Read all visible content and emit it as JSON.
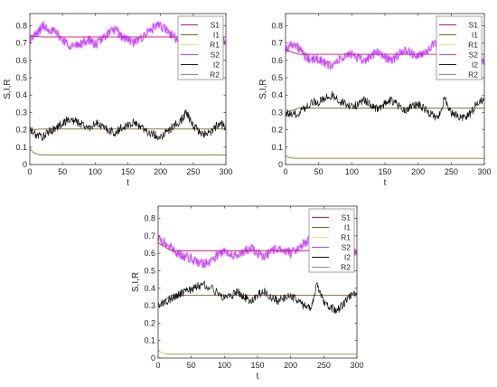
{
  "figure": {
    "colors": {
      "S1": "#c2186b",
      "I1": "#7a6a2a",
      "R1": "#dfe08a",
      "S2": "#c040ff",
      "I2": "#111111",
      "R2": "#8a8a8a",
      "axis": "#333333",
      "legend_border": "#666666"
    }
  },
  "chart_data": [
    {
      "type": "line",
      "panel": "top-left",
      "xlabel": "t",
      "ylabel": "S,I,R",
      "xlim": [
        0,
        300
      ],
      "ylim": [
        0,
        0.87
      ],
      "xticks": [
        0,
        50,
        100,
        150,
        200,
        250,
        300
      ],
      "yticks": [
        0,
        0.1,
        0.2,
        0.3,
        0.4,
        0.5,
        0.6,
        0.7,
        0.8
      ],
      "xtick_labels": [
        "0",
        "50",
        "100",
        "150",
        "200",
        "250",
        "300"
      ],
      "ytick_labels": [
        "0",
        "0.1",
        "0.2",
        "0.3",
        "0.4",
        "0.5",
        "0.6",
        "0.7",
        "0.8"
      ],
      "grid": false,
      "legend_position": "top-right",
      "legend": [
        "S1",
        "I1",
        "R1",
        "S2",
        "I2",
        "R2"
      ],
      "series": [
        {
          "name": "S1",
          "x": [
            0,
            20,
            300
          ],
          "values": [
            0.74,
            0.735,
            0.735
          ]
        },
        {
          "name": "I1",
          "x": [
            0,
            20,
            300
          ],
          "values": [
            0.2,
            0.205,
            0.205
          ]
        },
        {
          "name": "R1",
          "x": [
            0,
            5,
            15,
            300
          ],
          "values": [
            0.1,
            0.075,
            0.06,
            0.06
          ]
        },
        {
          "name": "S2",
          "x": [
            0,
            10,
            20,
            30,
            40,
            50,
            60,
            70,
            80,
            90,
            100,
            110,
            120,
            130,
            140,
            150,
            160,
            170,
            180,
            190,
            200,
            210,
            220,
            230,
            240,
            250,
            260,
            270,
            280,
            290,
            300
          ],
          "values": [
            0.72,
            0.75,
            0.8,
            0.78,
            0.76,
            0.72,
            0.69,
            0.68,
            0.7,
            0.72,
            0.69,
            0.72,
            0.76,
            0.78,
            0.74,
            0.72,
            0.7,
            0.73,
            0.76,
            0.79,
            0.8,
            0.77,
            0.74,
            0.7,
            0.66,
            0.74,
            0.79,
            0.81,
            0.78,
            0.7,
            0.72
          ]
        },
        {
          "name": "I2",
          "x": [
            0,
            10,
            20,
            30,
            40,
            50,
            60,
            70,
            80,
            90,
            100,
            110,
            120,
            130,
            140,
            150,
            160,
            170,
            180,
            190,
            200,
            210,
            220,
            230,
            240,
            250,
            260,
            270,
            280,
            290,
            300
          ],
          "values": [
            0.2,
            0.17,
            0.16,
            0.19,
            0.21,
            0.24,
            0.26,
            0.25,
            0.23,
            0.21,
            0.24,
            0.22,
            0.2,
            0.18,
            0.21,
            0.23,
            0.24,
            0.22,
            0.19,
            0.17,
            0.16,
            0.19,
            0.22,
            0.25,
            0.3,
            0.22,
            0.19,
            0.17,
            0.2,
            0.24,
            0.22
          ]
        },
        {
          "name": "R2",
          "x": [
            0,
            5,
            15,
            300
          ],
          "values": [
            0.09,
            0.07,
            0.055,
            0.055
          ]
        }
      ]
    },
    {
      "type": "line",
      "panel": "top-right",
      "xlabel": "t",
      "ylabel": "S,I,R",
      "xlim": [
        0,
        300
      ],
      "ylim": [
        0,
        0.87
      ],
      "xticks": [
        0,
        50,
        100,
        150,
        200,
        250,
        300
      ],
      "yticks": [
        0,
        0.1,
        0.2,
        0.3,
        0.4,
        0.5,
        0.6,
        0.7,
        0.8
      ],
      "xtick_labels": [
        "0",
        "50",
        "100",
        "150",
        "200",
        "250",
        "300"
      ],
      "ytick_labels": [
        "0",
        "0.1",
        "0.2",
        "0.3",
        "0.4",
        "0.5",
        "0.6",
        "0.7",
        "0.8"
      ],
      "grid": false,
      "legend_position": "top-right",
      "legend": [
        "S1",
        "I1",
        "R1",
        "S2",
        "I2",
        "R2"
      ],
      "series": [
        {
          "name": "S1",
          "x": [
            0,
            20,
            300
          ],
          "values": [
            0.66,
            0.635,
            0.635
          ]
        },
        {
          "name": "I1",
          "x": [
            0,
            20,
            300
          ],
          "values": [
            0.3,
            0.325,
            0.325
          ]
        },
        {
          "name": "R1",
          "x": [
            0,
            5,
            15,
            300
          ],
          "values": [
            0.06,
            0.045,
            0.04,
            0.04
          ]
        },
        {
          "name": "S2",
          "x": [
            0,
            10,
            20,
            30,
            40,
            50,
            60,
            70,
            80,
            90,
            100,
            110,
            120,
            130,
            140,
            150,
            160,
            170,
            180,
            190,
            200,
            210,
            220,
            230,
            240,
            250,
            260,
            270,
            280,
            290,
            300
          ],
          "values": [
            0.66,
            0.7,
            0.67,
            0.62,
            0.6,
            0.61,
            0.58,
            0.57,
            0.6,
            0.62,
            0.64,
            0.61,
            0.6,
            0.63,
            0.65,
            0.62,
            0.6,
            0.63,
            0.66,
            0.64,
            0.62,
            0.65,
            0.68,
            0.7,
            0.6,
            0.66,
            0.69,
            0.72,
            0.68,
            0.62,
            0.6
          ]
        },
        {
          "name": "I2",
          "x": [
            0,
            10,
            20,
            30,
            40,
            50,
            60,
            70,
            80,
            90,
            100,
            110,
            120,
            130,
            140,
            150,
            160,
            170,
            180,
            190,
            200,
            210,
            220,
            230,
            240,
            250,
            260,
            270,
            280,
            290,
            300
          ],
          "values": [
            0.3,
            0.28,
            0.3,
            0.33,
            0.36,
            0.36,
            0.38,
            0.4,
            0.37,
            0.35,
            0.33,
            0.35,
            0.37,
            0.34,
            0.32,
            0.35,
            0.37,
            0.34,
            0.31,
            0.33,
            0.35,
            0.32,
            0.29,
            0.27,
            0.38,
            0.3,
            0.28,
            0.27,
            0.3,
            0.36,
            0.38
          ]
        },
        {
          "name": "R2",
          "x": [
            0,
            5,
            15,
            300
          ],
          "values": [
            0.05,
            0.04,
            0.035,
            0.035
          ]
        }
      ]
    },
    {
      "type": "line",
      "panel": "bottom-center",
      "xlabel": "t",
      "ylabel": "S,I,R",
      "xlim": [
        0,
        300
      ],
      "ylim": [
        0,
        0.87
      ],
      "xticks": [
        0,
        50,
        100,
        150,
        200,
        250,
        300
      ],
      "yticks": [
        0,
        0.1,
        0.2,
        0.3,
        0.4,
        0.5,
        0.6,
        0.7,
        0.8
      ],
      "xtick_labels": [
        "0",
        "50",
        "100",
        "150",
        "200",
        "250",
        "300"
      ],
      "ytick_labels": [
        "0",
        "0.1",
        "0.2",
        "0.3",
        "0.4",
        "0.5",
        "0.6",
        "0.7",
        "0.8"
      ],
      "grid": false,
      "legend_position": "top-right",
      "legend": [
        "S1",
        "I1",
        "R1",
        "S2",
        "I2",
        "R2"
      ],
      "series": [
        {
          "name": "S1",
          "x": [
            0,
            20,
            300
          ],
          "values": [
            0.66,
            0.615,
            0.615
          ]
        },
        {
          "name": "I1",
          "x": [
            0,
            20,
            300
          ],
          "values": [
            0.3,
            0.36,
            0.36
          ]
        },
        {
          "name": "R1",
          "x": [
            0,
            5,
            15,
            300
          ],
          "values": [
            0.05,
            0.03,
            0.025,
            0.025
          ]
        },
        {
          "name": "S2",
          "x": [
            0,
            10,
            20,
            30,
            40,
            50,
            60,
            70,
            80,
            90,
            100,
            110,
            120,
            130,
            140,
            150,
            160,
            170,
            180,
            190,
            200,
            210,
            220,
            230,
            240,
            250,
            260,
            270,
            280,
            290,
            300
          ],
          "values": [
            0.68,
            0.66,
            0.63,
            0.6,
            0.58,
            0.57,
            0.55,
            0.54,
            0.56,
            0.59,
            0.61,
            0.6,
            0.58,
            0.61,
            0.63,
            0.6,
            0.58,
            0.61,
            0.63,
            0.62,
            0.6,
            0.63,
            0.66,
            0.68,
            0.55,
            0.64,
            0.67,
            0.7,
            0.66,
            0.61,
            0.6
          ]
        },
        {
          "name": "I2",
          "x": [
            0,
            10,
            20,
            30,
            40,
            50,
            60,
            70,
            80,
            90,
            100,
            110,
            120,
            130,
            140,
            150,
            160,
            170,
            180,
            190,
            200,
            210,
            220,
            230,
            240,
            250,
            260,
            270,
            280,
            290,
            300
          ],
          "values": [
            0.3,
            0.32,
            0.34,
            0.36,
            0.38,
            0.39,
            0.41,
            0.42,
            0.4,
            0.37,
            0.35,
            0.36,
            0.38,
            0.35,
            0.33,
            0.36,
            0.38,
            0.35,
            0.33,
            0.34,
            0.36,
            0.33,
            0.3,
            0.28,
            0.42,
            0.32,
            0.29,
            0.27,
            0.31,
            0.36,
            0.38
          ]
        },
        {
          "name": "R2",
          "x": [
            0,
            5,
            15,
            300
          ],
          "values": [
            0.045,
            0.03,
            0.022,
            0.022
          ]
        }
      ]
    }
  ]
}
